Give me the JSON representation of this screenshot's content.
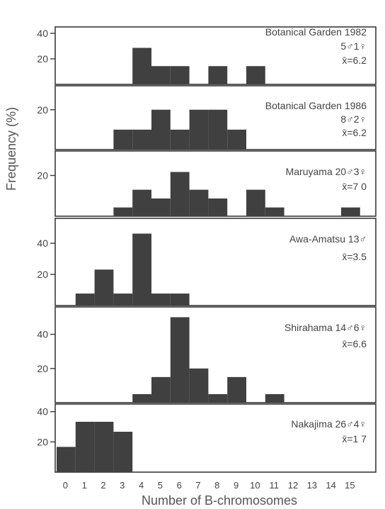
{
  "chart_data": {
    "type": "bar",
    "xlabel": "Number of B-chromosomes",
    "ylabel": "Frequency (%)",
    "x_ticks": [
      "0",
      "1",
      "2",
      "3",
      "4",
      "5",
      "6",
      "7",
      "8",
      "9",
      "10",
      "11",
      "12",
      "13",
      "14",
      "15"
    ],
    "bar_color": "#404040",
    "panels": [
      {
        "name": "Botanical Garden 1982",
        "label_lines": [
          "Botanical Garden 1982",
          "5♂1♀",
          "x̄=6.2"
        ],
        "ylim": [
          0,
          45
        ],
        "y_ticks": [
          20,
          40
        ],
        "y_tick_labels": [
          "20",
          "40"
        ],
        "x": [
          4,
          5,
          6,
          8,
          10
        ],
        "values": [
          28.6,
          14.3,
          14.3,
          14.3,
          14.3
        ]
      },
      {
        "name": "Botanical Garden 1986",
        "label_lines": [
          "Botanical Garden 1986",
          "8♂2♀",
          "x̄=6.2"
        ],
        "ylim": [
          0,
          32
        ],
        "y_ticks": [
          20
        ],
        "y_tick_labels": [
          "20"
        ],
        "x": [
          3,
          4,
          5,
          6,
          7,
          8,
          9
        ],
        "values": [
          10,
          10,
          20,
          10,
          20,
          20,
          10
        ]
      },
      {
        "name": "Maruyama",
        "label_lines": [
          "Maruyama 20♂3♀",
          "x̄=7 0"
        ],
        "ylim": [
          0,
          32
        ],
        "y_ticks": [
          20
        ],
        "y_tick_labels": [
          "20"
        ],
        "x": [
          3,
          4,
          5,
          6,
          7,
          8,
          10,
          11,
          15
        ],
        "values": [
          4.3,
          13,
          8.7,
          21.7,
          13,
          8.7,
          13,
          4.3,
          4.3
        ]
      },
      {
        "name": "Awa-Amatsu",
        "label_lines": [
          "Awa-Amatsu 13♂",
          "x̄=3.5"
        ],
        "ylim": [
          0,
          56
        ],
        "y_ticks": [
          20,
          40
        ],
        "y_tick_labels": [
          "20",
          "40"
        ],
        "x": [
          1,
          2,
          3,
          4,
          5,
          6
        ],
        "values": [
          7.7,
          23.1,
          7.7,
          46.2,
          7.7,
          7.7
        ]
      },
      {
        "name": "Shirahama",
        "label_lines": [
          "Shirahama 14♂6♀",
          "x̄=6.6"
        ],
        "ylim": [
          0,
          56
        ],
        "y_ticks": [
          20,
          40
        ],
        "y_tick_labels": [
          "20",
          "40"
        ],
        "x": [
          4,
          5,
          6,
          7,
          8,
          9,
          11
        ],
        "values": [
          5,
          15,
          50,
          20,
          5,
          15,
          5
        ]
      },
      {
        "name": "Nakajima",
        "label_lines": [
          "Nakajima 26♂4♀",
          "x̄=1 7"
        ],
        "ylim": [
          0,
          45
        ],
        "y_ticks": [
          20,
          40
        ],
        "y_tick_labels": [
          "20",
          "40"
        ],
        "x": [
          0,
          1,
          2,
          3
        ],
        "values": [
          16.7,
          33.3,
          33.3,
          26.7
        ]
      }
    ]
  }
}
